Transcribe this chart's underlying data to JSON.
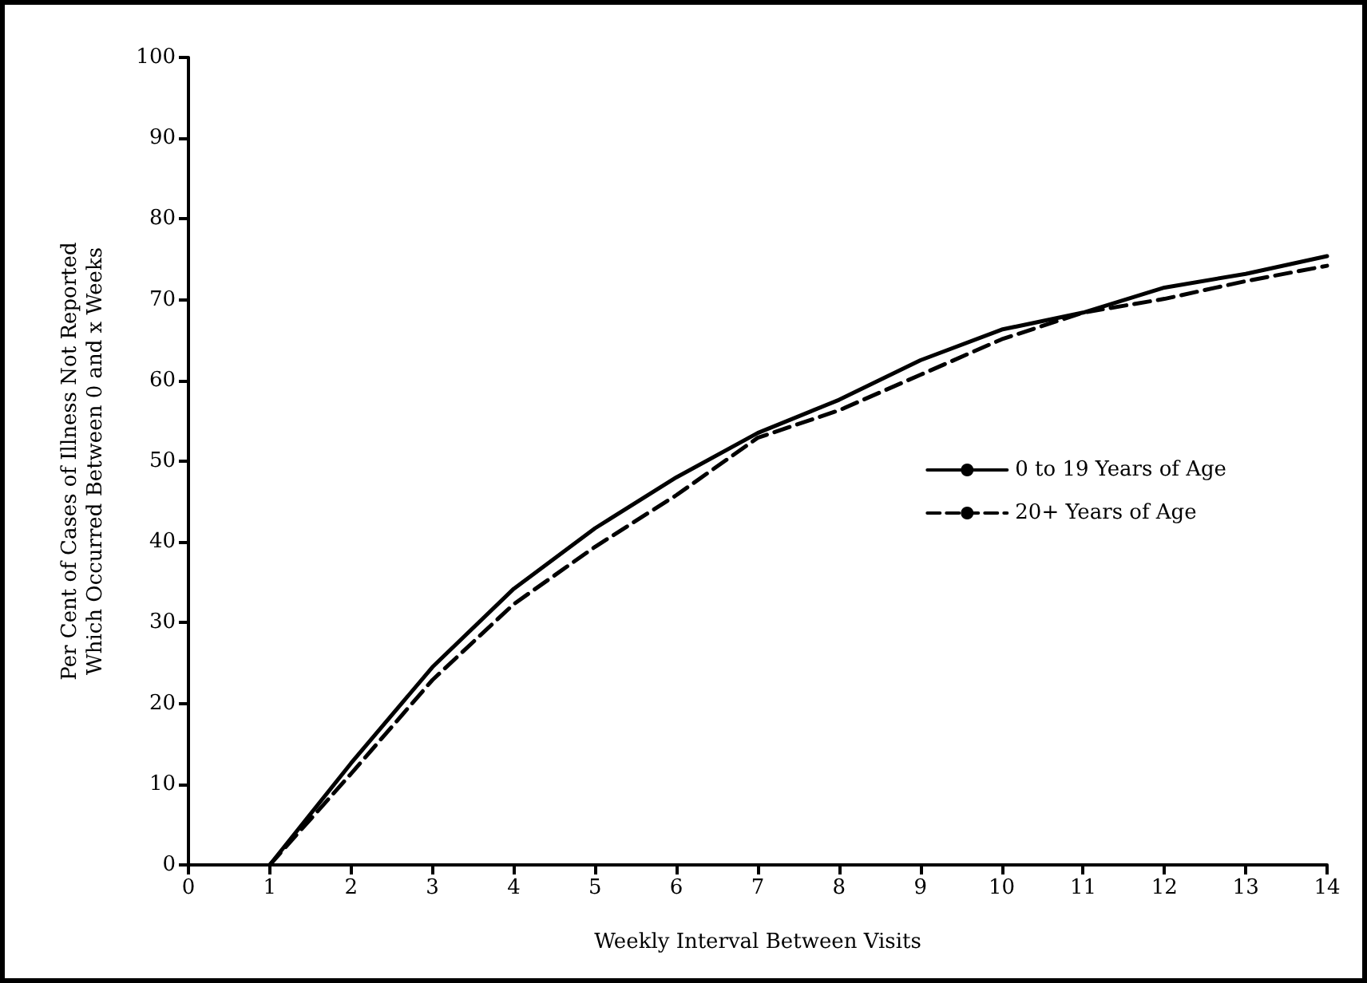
{
  "chart_data": {
    "type": "line",
    "xlabel": "Weekly Interval Between Visits",
    "ylabel": "Per Cent of Cases of Illness Not Reported\nWhich Occurred Between 0 and x Weeks",
    "x": [
      1,
      2,
      3,
      4,
      5,
      6,
      7,
      8,
      9,
      10,
      11,
      12,
      13,
      14
    ],
    "series": [
      {
        "name": "0 to 19 Years of Age",
        "color": "#000000",
        "line_style": "solid",
        "values": [
          0,
          12.6,
          24.5,
          34.2,
          41.7,
          48,
          53.5,
          57.6,
          62.5,
          66.3,
          68.4,
          71.5,
          73.2,
          75.4
        ]
      },
      {
        "name": "20+ Years of Age",
        "color": "#000000",
        "line_style": "dashed",
        "values": [
          0,
          11.3,
          22.9,
          32.3,
          39.4,
          45.8,
          52.9,
          56.3,
          60.7,
          65.1,
          68.4,
          70.1,
          72.3,
          74.2
        ]
      }
    ],
    "xlim": [
      0,
      14
    ],
    "xticks": [
      0,
      1,
      2,
      3,
      4,
      5,
      6,
      7,
      8,
      9,
      10,
      11,
      12,
      13,
      14
    ],
    "ylim": [
      0,
      100
    ],
    "yticks": [
      0,
      10,
      20,
      30,
      40,
      50,
      60,
      70,
      80,
      90,
      100
    ],
    "grid": false,
    "legend": "right",
    "marker": "none"
  }
}
